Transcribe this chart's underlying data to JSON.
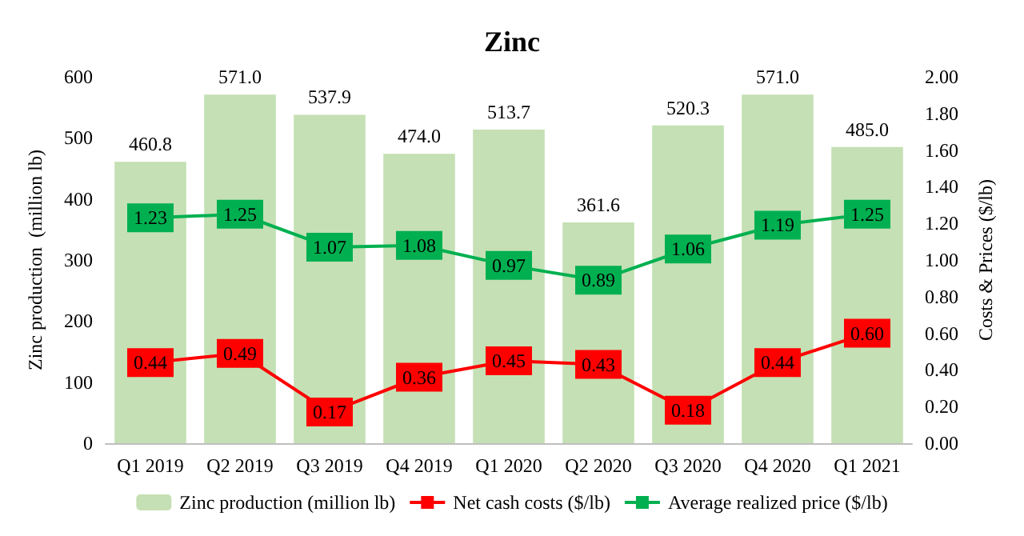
{
  "chart_data": {
    "type": "bar",
    "title": "Zinc",
    "ylabel": "Zinc production  (million lb)",
    "y2label": "Costs & Prices ($/lb)",
    "categories": [
      "Q1 2019",
      "Q2 2019",
      "Q3 2019",
      "Q4 2019",
      "Q1 2020",
      "Q2 2020",
      "Q3 2020",
      "Q4 2020",
      "Q1 2021"
    ],
    "series": [
      {
        "name": "Zinc production (million lb)",
        "color": "#c5e0b4",
        "values": [
          460.8,
          571.0,
          537.9,
          474.0,
          513.7,
          361.6,
          520.3,
          571.0,
          485.0
        ],
        "value_labels": [
          "460.8",
          "571.0",
          "537.9",
          "474.0",
          "513.7",
          "361.6",
          "520.3",
          "571.0",
          "485.0"
        ]
      },
      {
        "name": "Net cash costs ($/lb)",
        "type": "line",
        "axis": "y2",
        "color": "#ff0000",
        "values": [
          0.44,
          0.49,
          0.17,
          0.36,
          0.45,
          0.43,
          0.18,
          0.44,
          0.6
        ],
        "value_labels": [
          "0.44",
          "0.49",
          "0.17",
          "0.36",
          "0.45",
          "0.43",
          "0.18",
          "0.44",
          "0.60"
        ]
      },
      {
        "name": "Average realized price ($/lb)",
        "type": "line",
        "axis": "y2",
        "color": "#00b050",
        "values": [
          1.23,
          1.25,
          1.07,
          1.08,
          0.97,
          0.89,
          1.06,
          1.19,
          1.25
        ],
        "value_labels": [
          "1.23",
          "1.25",
          "1.07",
          "1.08",
          "0.97",
          "0.89",
          "1.06",
          "1.19",
          "1.25"
        ]
      }
    ],
    "ylim": [
      0,
      600
    ],
    "yticks": [
      0,
      100,
      200,
      300,
      400,
      500,
      600
    ],
    "y2lim": [
      0,
      2
    ],
    "y2ticks": [
      {
        "value": 0,
        "label": "0.00"
      },
      {
        "value": 0.2,
        "label": "0.20"
      },
      {
        "value": 0.4,
        "label": "0.40"
      },
      {
        "value": 0.6,
        "label": "0.60"
      },
      {
        "value": 0.8,
        "label": "0.80"
      },
      {
        "value": 1,
        "label": "1.00"
      },
      {
        "value": 1.2,
        "label": "1.20"
      },
      {
        "value": 1.4,
        "label": "1.40"
      },
      {
        "value": 1.6,
        "label": "1.60"
      },
      {
        "value": 1.8,
        "label": "1.80"
      },
      {
        "value": 2,
        "label": "2.00"
      }
    ],
    "grid": false,
    "legend": "bottom",
    "marker": "square",
    "line_style": "solid"
  }
}
